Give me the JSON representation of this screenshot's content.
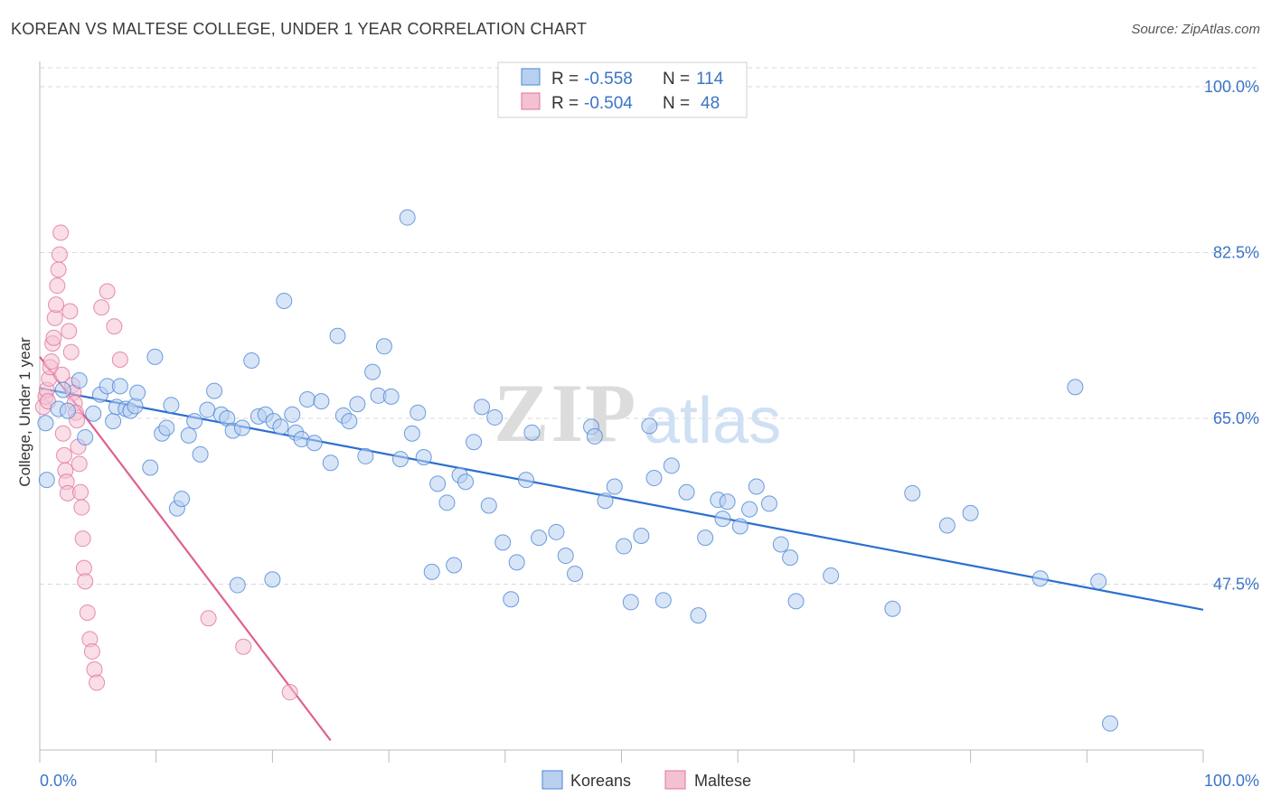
{
  "header": {
    "title": "KOREAN VS MALTESE COLLEGE, UNDER 1 YEAR CORRELATION CHART",
    "source": "Source: ZipAtlas.com"
  },
  "colors": {
    "blue": "#4a86d6",
    "blue_fill": "#b8d0f0",
    "pink": "#e0739c",
    "pink_fill": "#f4c1d3",
    "tick_label": "#3b74c7",
    "grid": "#d9d9d9"
  },
  "watermark": {
    "zip": "ZIP",
    "atlas": "atlas"
  },
  "legend_top": {
    "rows": [
      {
        "r_label": "R =",
        "r_value": "-0.558",
        "n_label": "N =",
        "n_value": "114"
      },
      {
        "r_label": "R =",
        "r_value": "-0.504",
        "n_label": "N =",
        "n_value": "48"
      }
    ]
  },
  "legend_bottom": [
    "Koreans",
    "Maltese"
  ],
  "chart_data": {
    "type": "scatter",
    "title": "KOREAN VS MALTESE COLLEGE, UNDER 1 YEAR CORRELATION CHART",
    "xlabel": "",
    "ylabel": "College, Under 1 year",
    "xlim": [
      0,
      100
    ],
    "ylim": [
      30,
      102
    ],
    "x_tick_labels": [
      "0.0%",
      "100.0%"
    ],
    "y_ticks": [
      47.5,
      65.0,
      82.5,
      100.0
    ],
    "y_tick_labels": [
      "47.5%",
      "65.0%",
      "82.5%",
      "100.0%"
    ],
    "grid": true,
    "legend_position": "top-center",
    "series": [
      {
        "name": "Koreans",
        "r": -0.558,
        "n": 114,
        "trend": {
          "x": [
            0,
            100
          ],
          "y": [
            68.2,
            44.8
          ]
        },
        "points": [
          [
            0.5,
            64.5
          ],
          [
            0.6,
            58.5
          ],
          [
            1.6,
            66.0
          ],
          [
            2.0,
            68.0
          ],
          [
            2.4,
            65.8
          ],
          [
            3.4,
            69.0
          ],
          [
            3.9,
            63.0
          ],
          [
            4.6,
            65.5
          ],
          [
            5.2,
            67.5
          ],
          [
            6.3,
            64.7
          ],
          [
            5.8,
            68.4
          ],
          [
            6.6,
            66.2
          ],
          [
            6.9,
            68.4
          ],
          [
            7.4,
            66.0
          ],
          [
            7.8,
            65.8
          ],
          [
            8.2,
            66.3
          ],
          [
            8.4,
            67.7
          ],
          [
            9.5,
            59.8
          ],
          [
            9.9,
            71.5
          ],
          [
            10.5,
            63.4
          ],
          [
            10.9,
            64.0
          ],
          [
            11.3,
            66.4
          ],
          [
            11.8,
            55.5
          ],
          [
            12.2,
            56.5
          ],
          [
            12.8,
            63.2
          ],
          [
            13.3,
            64.7
          ],
          [
            13.8,
            61.2
          ],
          [
            14.4,
            65.9
          ],
          [
            15.0,
            67.9
          ],
          [
            15.6,
            65.4
          ],
          [
            16.1,
            65.0
          ],
          [
            16.6,
            63.7
          ],
          [
            17.4,
            64.0
          ],
          [
            18.2,
            71.1
          ],
          [
            18.8,
            65.2
          ],
          [
            19.4,
            65.4
          ],
          [
            20.1,
            64.7
          ],
          [
            20.7,
            64.1
          ],
          [
            20.0,
            48.0
          ],
          [
            17.0,
            47.4
          ],
          [
            21.0,
            77.4
          ],
          [
            21.7,
            65.4
          ],
          [
            22.0,
            63.5
          ],
          [
            22.5,
            62.8
          ],
          [
            23.0,
            67.0
          ],
          [
            23.6,
            62.4
          ],
          [
            24.2,
            66.8
          ],
          [
            25.0,
            60.3
          ],
          [
            25.6,
            73.7
          ],
          [
            26.1,
            65.3
          ],
          [
            26.6,
            64.7
          ],
          [
            27.3,
            66.5
          ],
          [
            28.0,
            61.0
          ],
          [
            28.6,
            69.9
          ],
          [
            29.1,
            67.4
          ],
          [
            29.6,
            72.6
          ],
          [
            30.2,
            67.3
          ],
          [
            31.0,
            60.7
          ],
          [
            31.6,
            86.2
          ],
          [
            32.0,
            63.4
          ],
          [
            32.5,
            65.6
          ],
          [
            33.0,
            60.9
          ],
          [
            33.7,
            48.8
          ],
          [
            34.2,
            58.1
          ],
          [
            35.0,
            56.1
          ],
          [
            35.6,
            49.5
          ],
          [
            36.1,
            59.0
          ],
          [
            36.6,
            58.3
          ],
          [
            37.3,
            62.5
          ],
          [
            38.0,
            66.2
          ],
          [
            38.6,
            55.8
          ],
          [
            39.1,
            65.1
          ],
          [
            39.8,
            51.9
          ],
          [
            40.5,
            45.9
          ],
          [
            41.0,
            49.8
          ],
          [
            41.8,
            58.5
          ],
          [
            42.3,
            63.5
          ],
          [
            42.9,
            52.4
          ],
          [
            44.4,
            53.0
          ],
          [
            45.2,
            50.5
          ],
          [
            46.0,
            48.6
          ],
          [
            47.4,
            64.1
          ],
          [
            47.7,
            63.1
          ],
          [
            48.6,
            56.3
          ],
          [
            49.4,
            57.8
          ],
          [
            50.2,
            51.5
          ],
          [
            50.8,
            45.6
          ],
          [
            51.7,
            52.6
          ],
          [
            52.4,
            64.2
          ],
          [
            52.8,
            58.7
          ],
          [
            53.6,
            45.8
          ],
          [
            54.3,
            60.0
          ],
          [
            55.6,
            57.2
          ],
          [
            56.6,
            44.2
          ],
          [
            57.2,
            52.4
          ],
          [
            58.3,
            56.4
          ],
          [
            58.7,
            54.4
          ],
          [
            59.1,
            56.2
          ],
          [
            60.2,
            53.6
          ],
          [
            61.0,
            55.4
          ],
          [
            61.6,
            57.8
          ],
          [
            62.7,
            56.0
          ],
          [
            63.7,
            51.7
          ],
          [
            64.5,
            50.3
          ],
          [
            65.0,
            45.7
          ],
          [
            68.0,
            48.4
          ],
          [
            73.3,
            44.9
          ],
          [
            75.0,
            57.1
          ],
          [
            78.0,
            53.7
          ],
          [
            80.0,
            55.0
          ],
          [
            86.0,
            48.1
          ],
          [
            89.0,
            68.3
          ],
          [
            91.0,
            47.8
          ],
          [
            92.0,
            32.8
          ]
        ]
      },
      {
        "name": "Maltese",
        "r": -0.504,
        "n": 48,
        "trend": {
          "x": [
            0,
            25
          ],
          "y": [
            71.5,
            31.0
          ]
        },
        "points": [
          [
            0.3,
            66.2
          ],
          [
            0.5,
            67.3
          ],
          [
            0.6,
            68.0
          ],
          [
            0.7,
            66.8
          ],
          [
            0.8,
            69.2
          ],
          [
            0.9,
            70.4
          ],
          [
            1.0,
            71.0
          ],
          [
            1.1,
            72.9
          ],
          [
            1.2,
            73.5
          ],
          [
            1.3,
            75.6
          ],
          [
            1.4,
            77.0
          ],
          [
            1.5,
            79.0
          ],
          [
            1.6,
            80.7
          ],
          [
            1.7,
            82.3
          ],
          [
            1.8,
            84.6
          ],
          [
            1.9,
            69.6
          ],
          [
            2.0,
            63.4
          ],
          [
            2.1,
            61.1
          ],
          [
            2.2,
            59.5
          ],
          [
            2.3,
            58.3
          ],
          [
            2.4,
            57.1
          ],
          [
            2.5,
            74.2
          ],
          [
            2.6,
            76.3
          ],
          [
            2.7,
            72.0
          ],
          [
            2.8,
            68.5
          ],
          [
            2.9,
            67.7
          ],
          [
            3.0,
            66.6
          ],
          [
            3.1,
            65.6
          ],
          [
            3.2,
            64.8
          ],
          [
            3.3,
            62.0
          ],
          [
            3.4,
            60.2
          ],
          [
            3.5,
            57.2
          ],
          [
            3.6,
            55.6
          ],
          [
            3.7,
            52.3
          ],
          [
            3.8,
            49.2
          ],
          [
            3.9,
            47.8
          ],
          [
            4.1,
            44.5
          ],
          [
            4.3,
            41.7
          ],
          [
            4.5,
            40.4
          ],
          [
            4.7,
            38.5
          ],
          [
            4.9,
            37.1
          ],
          [
            5.3,
            76.7
          ],
          [
            5.8,
            78.4
          ],
          [
            6.4,
            74.7
          ],
          [
            6.9,
            71.2
          ],
          [
            14.5,
            43.9
          ],
          [
            17.5,
            40.9
          ],
          [
            21.5,
            36.1
          ]
        ]
      }
    ]
  }
}
